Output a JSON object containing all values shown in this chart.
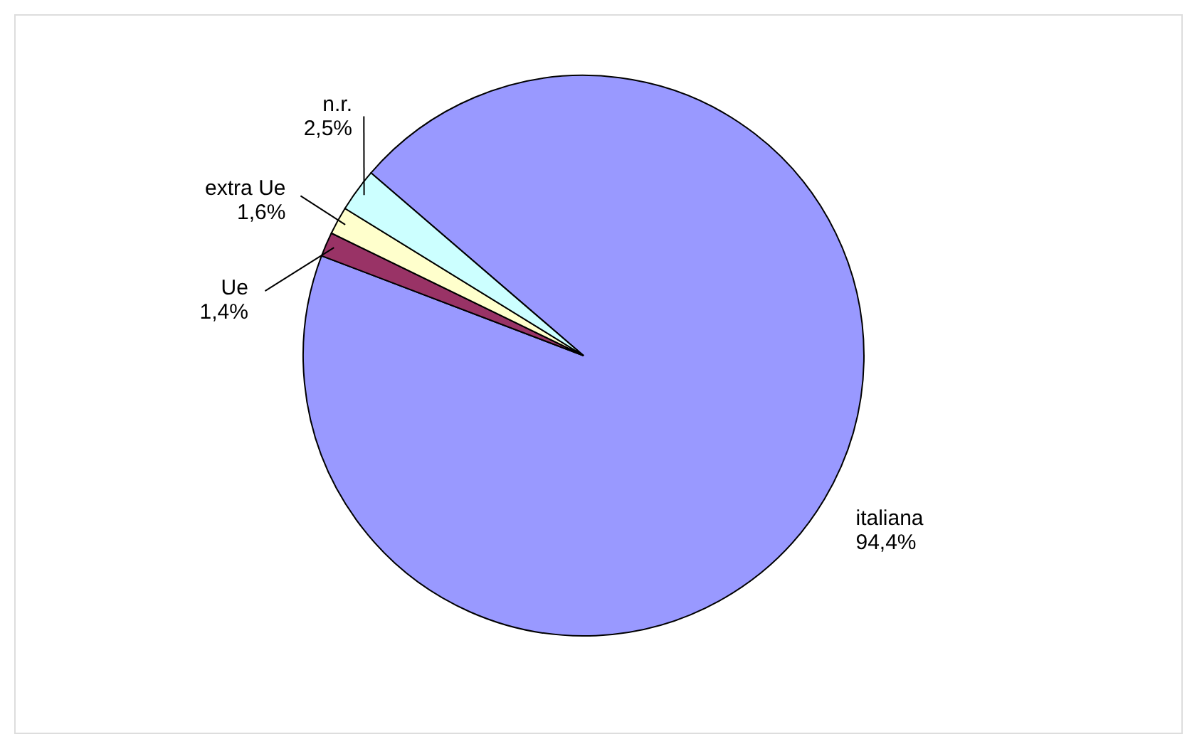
{
  "chart_data": {
    "type": "pie",
    "categories": [
      "italiana",
      "Ue",
      "extra Ue",
      "n.r."
    ],
    "values": [
      94.4,
      1.4,
      1.6,
      2.5
    ],
    "value_labels": [
      "94,4%",
      "1,4%",
      "1,6%",
      "2,5%"
    ],
    "colors": [
      "#9999ff",
      "#993366",
      "#ffffcc",
      "#ccffff"
    ]
  }
}
